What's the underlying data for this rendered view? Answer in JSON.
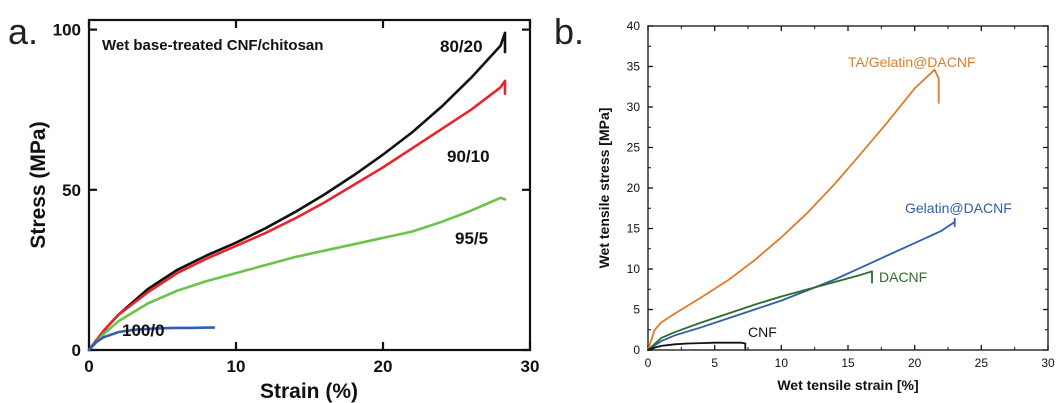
{
  "chart_data": [
    {
      "panel_label": "a.",
      "type": "line",
      "title": "Wet base-treated CNF/chitosan",
      "xlabel": "Strain (%)",
      "ylabel": "Stress (MPa)",
      "xlim": [
        0,
        30
      ],
      "ylim": [
        0,
        103
      ],
      "xticks": [
        0,
        10,
        20,
        30
      ],
      "yticks": [
        0,
        50,
        100
      ],
      "grid": false,
      "legend": "none (series labeled inline)",
      "colors": {
        "80/20": "#111111",
        "90/10": "#e8252e",
        "95/5": "#6cc24a",
        "100/0": "#2f5fb3"
      },
      "series": [
        {
          "name": "80/20",
          "x": [
            0,
            1,
            2,
            4,
            6,
            8,
            10,
            12,
            14,
            16,
            18,
            20,
            22,
            24,
            26,
            28,
            28.3,
            28.3
          ],
          "y": [
            0,
            6,
            11,
            19,
            25,
            29.5,
            33.5,
            38,
            43,
            48.5,
            54.5,
            61,
            68,
            76,
            85,
            95,
            99,
            93
          ]
        },
        {
          "name": "90/10",
          "x": [
            0,
            1,
            2,
            4,
            6,
            8,
            10,
            12,
            14,
            16,
            18,
            20,
            22,
            24,
            26,
            28,
            28.3,
            28.3
          ],
          "y": [
            0,
            6,
            11,
            18,
            24,
            28.5,
            32.5,
            36.5,
            41,
            46,
            51.5,
            57,
            63,
            69,
            75,
            82,
            84,
            80
          ]
        },
        {
          "name": "95/5",
          "x": [
            0,
            1,
            2,
            4,
            6,
            8,
            10,
            12,
            14,
            16,
            18,
            20,
            22,
            24,
            26,
            28,
            28.3
          ],
          "y": [
            0,
            5,
            9,
            14.5,
            18.5,
            21.5,
            24,
            26.5,
            29,
            31,
            33,
            35,
            37,
            40,
            43.5,
            47.5,
            47
          ]
        },
        {
          "name": "100/0",
          "x": [
            0,
            0.5,
            1,
            2,
            3,
            4,
            5,
            6,
            7,
            8,
            8.5
          ],
          "y": [
            0,
            2.5,
            4,
            5.6,
            6.3,
            6.6,
            6.8,
            6.9,
            6.9,
            7,
            7
          ]
        }
      ]
    },
    {
      "panel_label": "b.",
      "type": "line",
      "xlabel": "Wet tensile strain [%]",
      "ylabel": "Wet tensile stress [MPa]",
      "xlim": [
        0,
        30
      ],
      "ylim": [
        0,
        40
      ],
      "xticks": [
        0,
        5,
        10,
        15,
        20,
        25,
        30
      ],
      "yticks": [
        0,
        5,
        10,
        15,
        20,
        25,
        30,
        35,
        40
      ],
      "grid": false,
      "legend": "none (series labeled inline)",
      "colors": {
        "TA/Gelatin@DACNF": "#e07b2a",
        "Gelatin@DACNF": "#2f5fa6",
        "DACNF": "#2e6b2e",
        "CNF": "#111111"
      },
      "series": [
        {
          "name": "TA/Gelatin@DACNF",
          "x": [
            0,
            0.5,
            1,
            2,
            4,
            6,
            8,
            10,
            12,
            14,
            16,
            18,
            20,
            21.5,
            21.8,
            21.8
          ],
          "y": [
            0,
            2.5,
            3.4,
            4.5,
            6.5,
            8.6,
            11.1,
            13.9,
            17,
            20.5,
            24.3,
            28.2,
            32.3,
            34.6,
            33.5,
            30.5
          ]
        },
        {
          "name": "Gelatin@DACNF",
          "x": [
            0,
            1,
            2,
            4,
            6,
            8,
            10,
            12,
            14,
            16,
            18,
            20,
            22,
            23,
            23,
            23
          ],
          "y": [
            0,
            1.1,
            1.8,
            2.8,
            3.9,
            5,
            6.1,
            7.4,
            8.7,
            10.2,
            11.7,
            13.2,
            14.7,
            15.8,
            16.2,
            15.3
          ]
        },
        {
          "name": "DACNF",
          "x": [
            0,
            1,
            2,
            4,
            6,
            8,
            10,
            12,
            14,
            16,
            16.8,
            16.8,
            16.8
          ],
          "y": [
            0,
            1.5,
            2.2,
            3.4,
            4.5,
            5.6,
            6.6,
            7.5,
            8.4,
            9.3,
            9.7,
            9.1,
            8.3
          ]
        },
        {
          "name": "CNF",
          "x": [
            0,
            0.5,
            1,
            2,
            3,
            4,
            5,
            6,
            7,
            7.3,
            7.3
          ],
          "y": [
            0,
            0.3,
            0.5,
            0.7,
            0.8,
            0.85,
            0.9,
            0.9,
            0.9,
            0.8,
            0
          ]
        }
      ]
    }
  ]
}
